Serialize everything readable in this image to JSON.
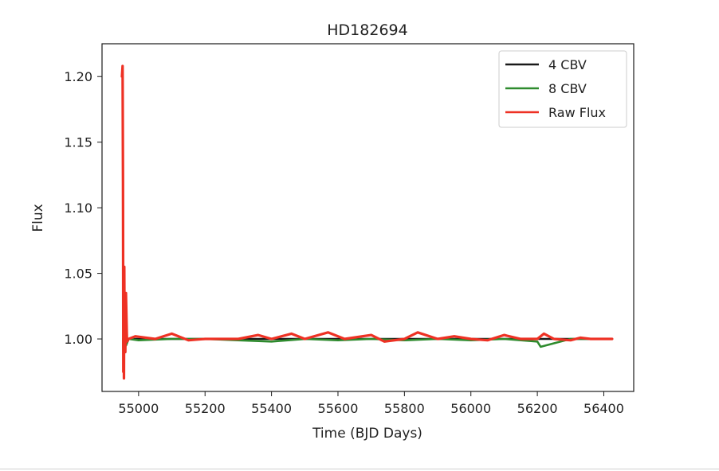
{
  "chart_data": {
    "type": "line",
    "title": "HD182694",
    "xlabel": "Time (BJD Days)",
    "ylabel": "Flux",
    "xlim": [
      54890,
      56490
    ],
    "ylim": [
      0.96,
      1.225
    ],
    "xticks": [
      55000,
      55200,
      55400,
      55600,
      55800,
      56000,
      56200,
      56400
    ],
    "yticks": [
      1.0,
      1.05,
      1.1,
      1.15,
      1.2
    ],
    "ytick_labels": [
      "1.00",
      "1.05",
      "1.10",
      "1.15",
      "1.20"
    ],
    "grid": false,
    "legend_position": "top-right",
    "series": [
      {
        "name": "4 CBV",
        "color": "#1a1a1a",
        "x": [
          54953,
          54955,
          54958,
          54962,
          54970,
          55000,
          55100,
          55200,
          55300,
          55400,
          55500,
          55600,
          55700,
          55800,
          55900,
          56000,
          56100,
          56200,
          56300,
          56330,
          56400,
          56425
        ],
        "y": [
          1.0,
          0.985,
          1.01,
          0.995,
          1.0,
          1.0,
          1.0,
          1.0,
          1.0,
          1.0,
          1.0,
          1.0,
          1.0,
          1.0,
          1.0,
          1.0,
          1.0,
          1.0,
          1.0,
          1.0,
          1.0,
          1.0
        ]
      },
      {
        "name": "8 CBV",
        "color": "#2e8b2e",
        "x": [
          54953,
          54955,
          54958,
          54962,
          54970,
          55000,
          55100,
          55200,
          55300,
          55400,
          55500,
          55600,
          55700,
          55800,
          55900,
          56000,
          56100,
          56200,
          56210,
          56300,
          56330,
          56400,
          56425
        ],
        "y": [
          1.0,
          0.98,
          1.01,
          0.995,
          1.0,
          0.999,
          1.0,
          1.0,
          0.999,
          0.998,
          1.0,
          0.999,
          1.0,
          0.999,
          1.0,
          0.999,
          1.0,
          0.998,
          0.994,
          1.0,
          1.0,
          1.0,
          1.0
        ]
      },
      {
        "name": "Raw Flux",
        "color": "#ee3124",
        "x": [
          54950,
          54952,
          54953,
          54954,
          54955,
          54956,
          54957,
          54958,
          54960,
          54962,
          54965,
          54970,
          54990,
          55050,
          55100,
          55150,
          55200,
          55300,
          55360,
          55400,
          55460,
          55500,
          55570,
          55620,
          55700,
          55740,
          55800,
          55840,
          55900,
          55950,
          56000,
          56050,
          56100,
          56150,
          56200,
          56220,
          56250,
          56300,
          56330,
          56360,
          56400,
          56425
        ],
        "y": [
          1.2,
          1.208,
          1.12,
          0.975,
          1.04,
          0.97,
          1.055,
          1.0,
          0.99,
          1.035,
          0.998,
          1.0,
          1.002,
          1.0,
          1.004,
          0.999,
          1.0,
          1.0,
          1.003,
          1.0,
          1.004,
          1.0,
          1.005,
          1.0,
          1.003,
          0.998,
          1.0,
          1.005,
          1.0,
          1.002,
          1.0,
          0.999,
          1.003,
          1.0,
          1.0,
          1.004,
          1.0,
          0.999,
          1.001,
          1.0,
          1.0,
          1.0
        ]
      }
    ]
  }
}
